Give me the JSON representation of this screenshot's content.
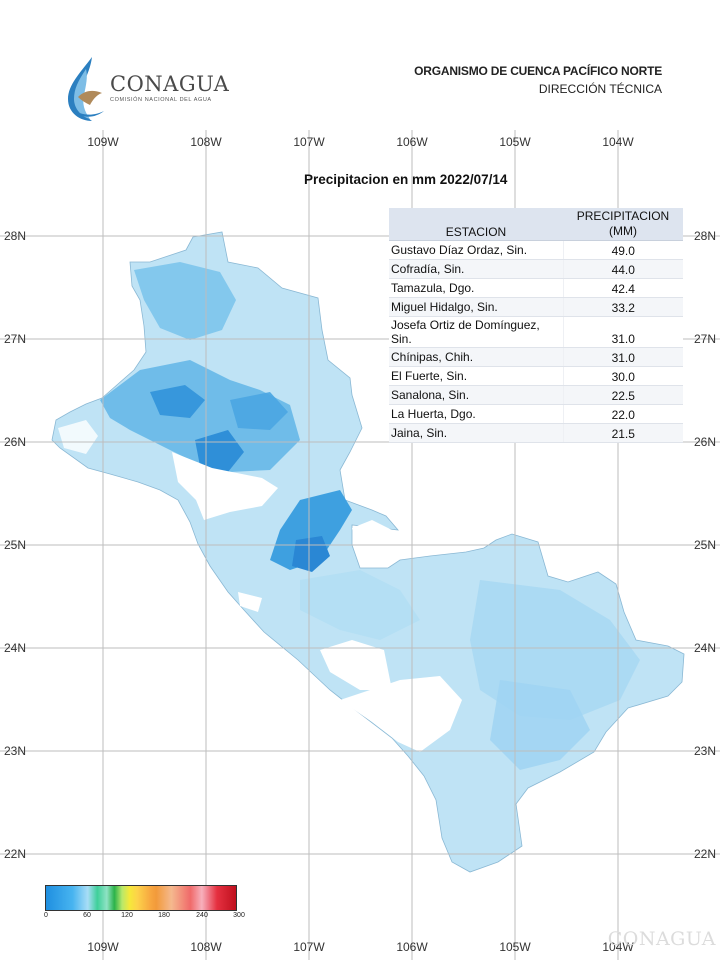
{
  "header": {
    "logo_name": "CONAGUA",
    "logo_sub": "COMISIÓN NACIONAL DEL AGUA",
    "org": "ORGANISMO DE CUENCA PACÍFICO NORTE",
    "dept": "DIRECCIÓN TÉCNICA"
  },
  "map": {
    "title": "Precipitacion en mm  2022/07/14",
    "lon_labels": [
      "109W",
      "108W",
      "107W",
      "106W",
      "105W",
      "104W"
    ],
    "lat_labels": [
      "28N",
      "27N",
      "26N",
      "25N",
      "24N",
      "23N",
      "22N"
    ],
    "colors": {
      "land_light": "#bfe3f5",
      "land_mid": "#7cc4ec",
      "land_dark": "#2f8fd8",
      "grid": "#bdbdbd"
    }
  },
  "table": {
    "header_station": "ESTACION",
    "header_precip_1": "PRECIPITACION",
    "header_precip_2": "(MM)",
    "rows": [
      {
        "station": "Gustavo Díaz Ordaz, Sin.",
        "value": "49.0"
      },
      {
        "station": "Cofradía, Sin.",
        "value": "44.0"
      },
      {
        "station": "Tamazula, Dgo.",
        "value": "42.4"
      },
      {
        "station": "Miguel Hidalgo, Sin.",
        "value": "33.2"
      },
      {
        "station": "Josefa Ortiz de Domínguez, Sin.",
        "value": "31.0"
      },
      {
        "station": "Chínipas, Chih.",
        "value": "31.0"
      },
      {
        "station": "El Fuerte, Sin.",
        "value": "30.0"
      },
      {
        "station": "Sanalona, Sin.",
        "value": "22.5"
      },
      {
        "station": "La Huerta, Dgo.",
        "value": "22.0"
      },
      {
        "station": "Jaina, Sin.",
        "value": "21.5"
      }
    ]
  },
  "colorbar": {
    "ticks": [
      "0",
      "60",
      "120",
      "180",
      "240",
      "300"
    ]
  },
  "watermark": "CONAGUA"
}
